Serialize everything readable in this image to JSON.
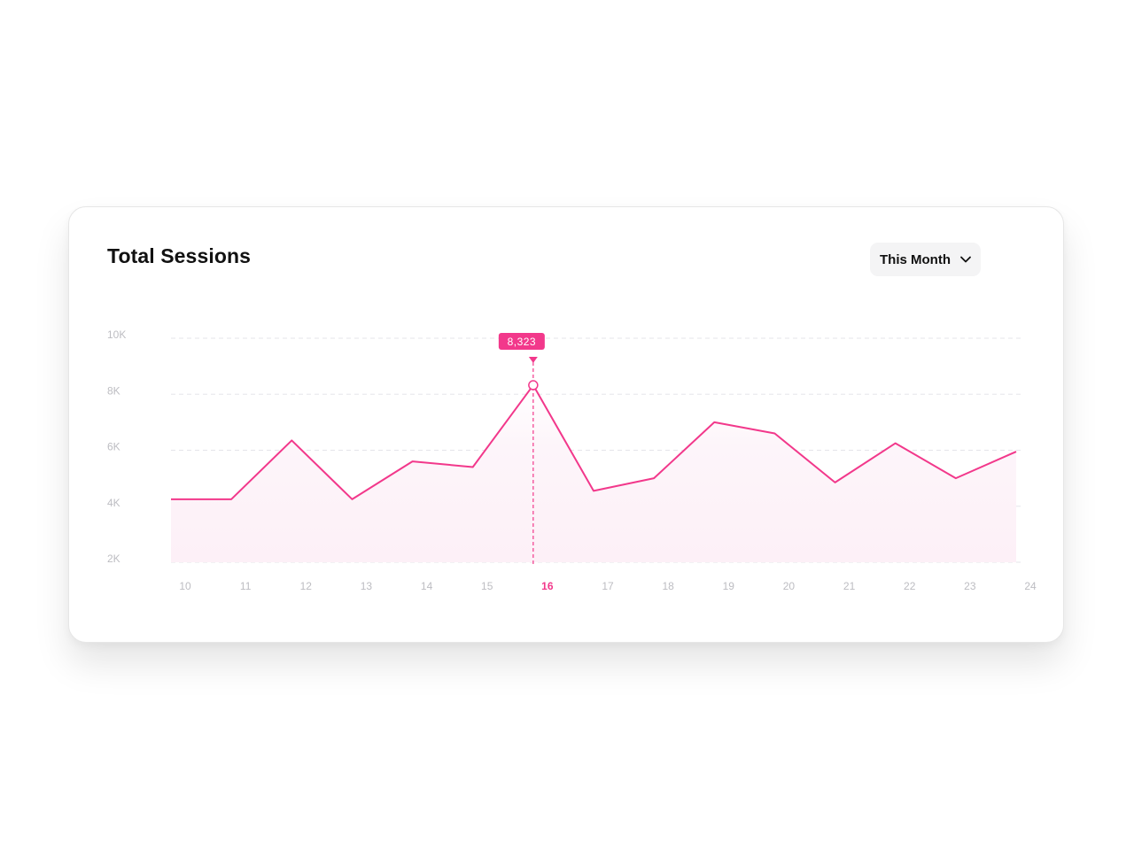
{
  "card": {
    "title": "Total Sessions",
    "period_select": {
      "label": "This Month",
      "icon": "chevron-down-icon"
    }
  },
  "colors": {
    "accent": "#f2388b",
    "grid": "#e5e5ea",
    "tick": "#bdbdc2",
    "fill_top": "#fde4f0",
    "fill_bottom": "#fdf0f7"
  },
  "chart_data": {
    "type": "area",
    "title": "Total Sessions",
    "x": [
      10,
      11,
      12,
      13,
      14,
      15,
      16,
      17,
      18,
      19,
      20,
      21,
      22,
      23,
      24
    ],
    "series": [
      {
        "values": [
          4250,
          4250,
          6350,
          4250,
          5600,
          5400,
          8323,
          4550,
          5000,
          7000,
          6600,
          4850,
          6250,
          5000,
          5950
        ]
      }
    ],
    "y_ticks": [
      "10K",
      "8K",
      "6K",
      "4K",
      "2K"
    ],
    "y_tick_values": [
      10000,
      8000,
      6000,
      4000,
      2000
    ],
    "ylim": [
      2000,
      10000
    ],
    "grid": true,
    "highlight": {
      "x": 16,
      "label": "8,323"
    }
  }
}
